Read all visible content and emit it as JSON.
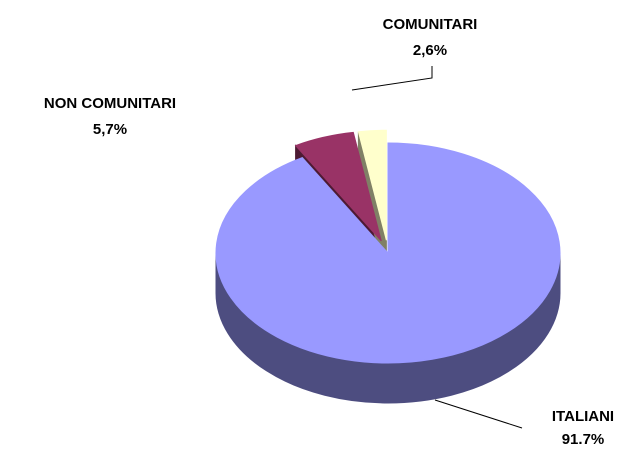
{
  "chart_data": {
    "type": "pie",
    "categories": [
      "ITALIANI",
      "NON COMUNITARI",
      "COMUNITARI"
    ],
    "values": [
      91.7,
      5.7,
      2.6
    ],
    "value_labels": [
      "91.7%",
      "5,7%",
      "2,6%"
    ],
    "colors": [
      "#9999ff",
      "#993366",
      "#ffffcc"
    ],
    "exploded": [
      false,
      true,
      true
    ]
  }
}
